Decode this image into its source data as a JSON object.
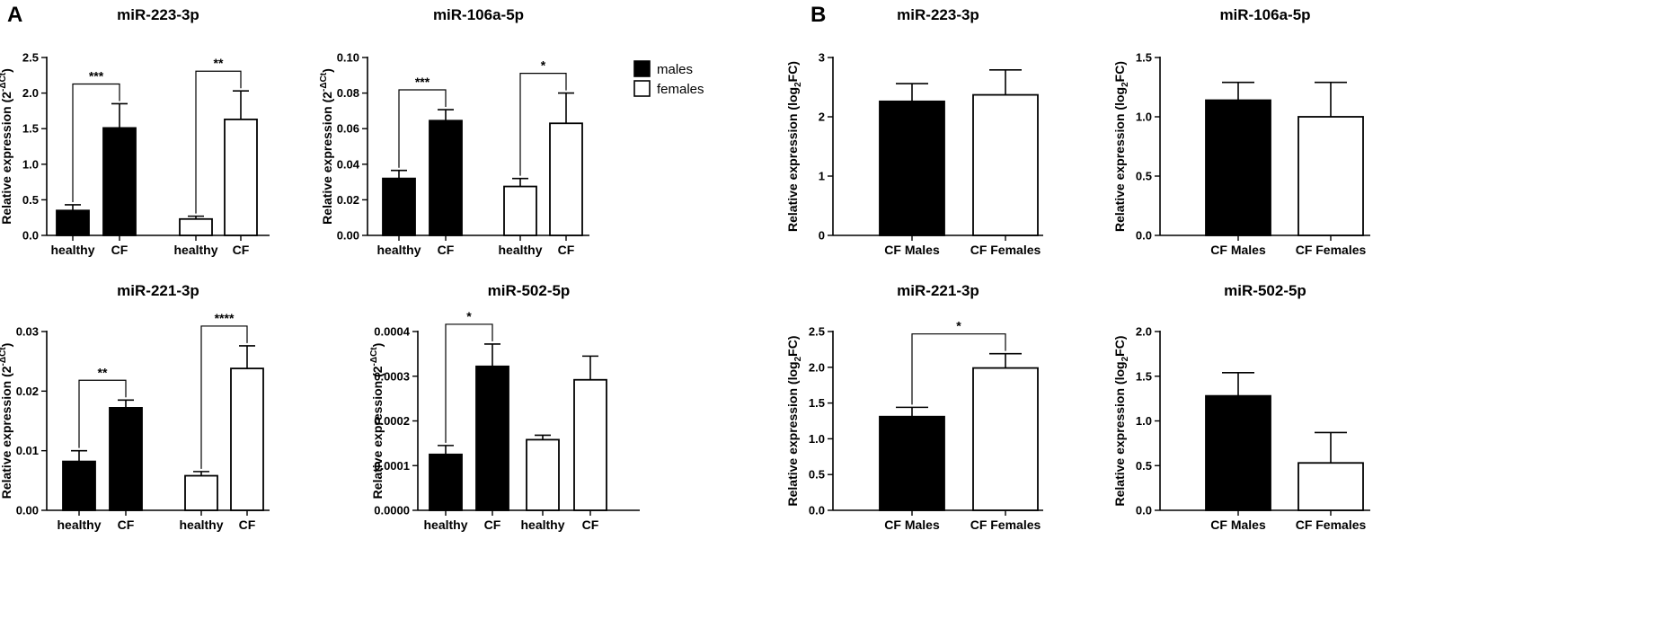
{
  "colors": {
    "male_fill": "#000000",
    "female_fill": "#ffffff",
    "stroke": "#000000"
  },
  "panel_letters": {
    "a": "A",
    "b": "B"
  },
  "legend": {
    "males": "males",
    "females": "females"
  },
  "chart_data": [
    {
      "id": "a1",
      "type": "bar",
      "title": "miR-223-3p",
      "ylabel": "Relative expression (2^-ΔCt)",
      "ylabel_base": "Relative expression (2",
      "ylabel_sup": "-ΔCt",
      "ylabel_tail": ")",
      "ylim": [
        0,
        2.5
      ],
      "yticks": [
        {
          "v": 0,
          "t": "0.0"
        },
        {
          "v": 0.5,
          "t": "0.5"
        },
        {
          "v": 1.0,
          "t": "1.0"
        },
        {
          "v": 1.5,
          "t": "1.5"
        },
        {
          "v": 2.0,
          "t": "2.0"
        },
        {
          "v": 2.5,
          "t": "2.5"
        }
      ],
      "bars": [
        {
          "label": "healthy",
          "group": "males",
          "value": 0.35,
          "err": 0.08
        },
        {
          "label": "CF",
          "group": "males",
          "value": 1.51,
          "err": 0.34
        },
        {
          "label": "healthy",
          "group": "females",
          "value": 0.23,
          "err": 0.04
        },
        {
          "label": "CF",
          "group": "females",
          "value": 1.63,
          "err": 0.4
        }
      ],
      "brackets": [
        {
          "from": 0,
          "to": 1,
          "label": "***"
        },
        {
          "from": 2,
          "to": 3,
          "label": "**"
        }
      ]
    },
    {
      "id": "a2",
      "type": "bar",
      "title": "miR-106a-5p",
      "ylabel": "Relative expression (2^-ΔCt)",
      "ylabel_base": "Relative expression (2",
      "ylabel_sup": "-ΔCt",
      "ylabel_tail": ")",
      "ylim": [
        0,
        0.1
      ],
      "yticks": [
        {
          "v": 0,
          "t": "0.00"
        },
        {
          "v": 0.02,
          "t": "0.02"
        },
        {
          "v": 0.04,
          "t": "0.04"
        },
        {
          "v": 0.06,
          "t": "0.06"
        },
        {
          "v": 0.08,
          "t": "0.08"
        },
        {
          "v": 0.1,
          "t": "0.10"
        }
      ],
      "bars": [
        {
          "label": "healthy",
          "group": "males",
          "value": 0.032,
          "err": 0.0045
        },
        {
          "label": "CF",
          "group": "males",
          "value": 0.0645,
          "err": 0.0062
        },
        {
          "label": "healthy",
          "group": "females",
          "value": 0.0275,
          "err": 0.0045
        },
        {
          "label": "CF",
          "group": "females",
          "value": 0.063,
          "err": 0.017
        }
      ],
      "brackets": [
        {
          "from": 0,
          "to": 1,
          "label": "***"
        },
        {
          "from": 2,
          "to": 3,
          "label": "*"
        }
      ]
    },
    {
      "id": "a3",
      "type": "bar",
      "title": "miR-221-3p",
      "ylabel": "Relative expression (2^-ΔCt)",
      "ylabel_base": "Relative expression (2",
      "ylabel_sup": "-ΔCt",
      "ylabel_tail": ")",
      "ylim": [
        0,
        0.03
      ],
      "yticks": [
        {
          "v": 0,
          "t": "0.00"
        },
        {
          "v": 0.01,
          "t": "0.01"
        },
        {
          "v": 0.02,
          "t": "0.02"
        },
        {
          "v": 0.03,
          "t": "0.03"
        }
      ],
      "bars": [
        {
          "label": "healthy",
          "group": "males",
          "value": 0.0082,
          "err": 0.0018
        },
        {
          "label": "CF",
          "group": "males",
          "value": 0.0172,
          "err": 0.0013
        },
        {
          "label": "healthy",
          "group": "females",
          "value": 0.0058,
          "err": 0.0007
        },
        {
          "label": "CF",
          "group": "females",
          "value": 0.0238,
          "err": 0.0038
        }
      ],
      "brackets": [
        {
          "from": 0,
          "to": 1,
          "label": "**"
        },
        {
          "from": 2,
          "to": 3,
          "label": "****"
        }
      ]
    },
    {
      "id": "a4",
      "type": "bar",
      "title": "miR-502-5p",
      "ylabel": "Relative expression (2^-ΔCt)",
      "ylabel_base": "Relative expression (2",
      "ylabel_sup": "-ΔCt",
      "ylabel_tail": ")",
      "ylim": [
        0,
        0.0004
      ],
      "yticks": [
        {
          "v": 0,
          "t": "0.0000"
        },
        {
          "v": 0.0001,
          "t": "0.0001"
        },
        {
          "v": 0.0002,
          "t": "0.0002"
        },
        {
          "v": 0.0003,
          "t": "0.0003"
        },
        {
          "v": 0.0004,
          "t": "0.0004"
        }
      ],
      "bars": [
        {
          "label": "healthy",
          "group": "males",
          "value": 0.000125,
          "err": 2e-05
        },
        {
          "label": "CF",
          "group": "males",
          "value": 0.000322,
          "err": 5e-05
        },
        {
          "label": "healthy",
          "group": "females",
          "value": 0.000158,
          "err": 1e-05
        },
        {
          "label": "CF",
          "group": "females",
          "value": 0.000292,
          "err": 5.3e-05
        }
      ],
      "brackets": [
        {
          "from": 0,
          "to": 1,
          "label": "*"
        }
      ]
    },
    {
      "id": "b1",
      "type": "bar",
      "title": "miR-223-3p",
      "ylabel": "Relative expression (log2FC)",
      "ylabel_base": "Relative expression (log",
      "ylabel_sub": "2",
      "ylabel_tail": "FC)",
      "ylim": [
        0,
        3
      ],
      "yticks": [
        {
          "v": 0,
          "t": "0"
        },
        {
          "v": 1,
          "t": "1"
        },
        {
          "v": 2,
          "t": "2"
        },
        {
          "v": 3,
          "t": "3"
        }
      ],
      "bars": [
        {
          "label": "CF Males",
          "group": "males",
          "value": 2.26,
          "err": 0.3
        },
        {
          "label": "CF Females",
          "group": "females",
          "value": 2.37,
          "err": 0.42
        }
      ],
      "brackets": []
    },
    {
      "id": "b2",
      "type": "bar",
      "title": "miR-106a-5p",
      "ylabel": "Relative expression (log2FC)",
      "ylabel_base": "Relative expression (log",
      "ylabel_sub": "2",
      "ylabel_tail": "FC)",
      "ylim": [
        0,
        1.5
      ],
      "yticks": [
        {
          "v": 0,
          "t": "0.0"
        },
        {
          "v": 0.5,
          "t": "0.5"
        },
        {
          "v": 1.0,
          "t": "1.0"
        },
        {
          "v": 1.5,
          "t": "1.5"
        }
      ],
      "bars": [
        {
          "label": "CF Males",
          "group": "males",
          "value": 1.14,
          "err": 0.15
        },
        {
          "label": "CF Females",
          "group": "females",
          "value": 1.0,
          "err": 0.29
        }
      ],
      "brackets": []
    },
    {
      "id": "b3",
      "type": "bar",
      "title": "miR-221-3p",
      "ylabel": "Relative expression (log2FC)",
      "ylabel_base": "Relative expression (log",
      "ylabel_sub": "2",
      "ylabel_tail": "FC)",
      "ylim": [
        0,
        2.5
      ],
      "yticks": [
        {
          "v": 0,
          "t": "0.0"
        },
        {
          "v": 0.5,
          "t": "0.5"
        },
        {
          "v": 1.0,
          "t": "1.0"
        },
        {
          "v": 1.5,
          "t": "1.5"
        },
        {
          "v": 2.0,
          "t": "2.0"
        },
        {
          "v": 2.5,
          "t": "2.5"
        }
      ],
      "bars": [
        {
          "label": "CF Males",
          "group": "males",
          "value": 1.31,
          "err": 0.13
        },
        {
          "label": "CF Females",
          "group": "females",
          "value": 1.99,
          "err": 0.2
        }
      ],
      "brackets": [
        {
          "from": 0,
          "to": 1,
          "label": "*"
        }
      ]
    },
    {
      "id": "b4",
      "type": "bar",
      "title": "miR-502-5p",
      "ylabel": "Relative expression (log2FC)",
      "ylabel_base": "Relative expression (log",
      "ylabel_sub": "2",
      "ylabel_tail": "FC)",
      "ylim": [
        0,
        2.0
      ],
      "yticks": [
        {
          "v": 0,
          "t": "0.0"
        },
        {
          "v": 0.5,
          "t": "0.5"
        },
        {
          "v": 1.0,
          "t": "1.0"
        },
        {
          "v": 1.5,
          "t": "1.5"
        },
        {
          "v": 2.0,
          "t": "2.0"
        }
      ],
      "bars": [
        {
          "label": "CF Males",
          "group": "males",
          "value": 1.28,
          "err": 0.26
        },
        {
          "label": "CF Females",
          "group": "females",
          "value": 0.53,
          "err": 0.34
        }
      ],
      "brackets": []
    }
  ]
}
